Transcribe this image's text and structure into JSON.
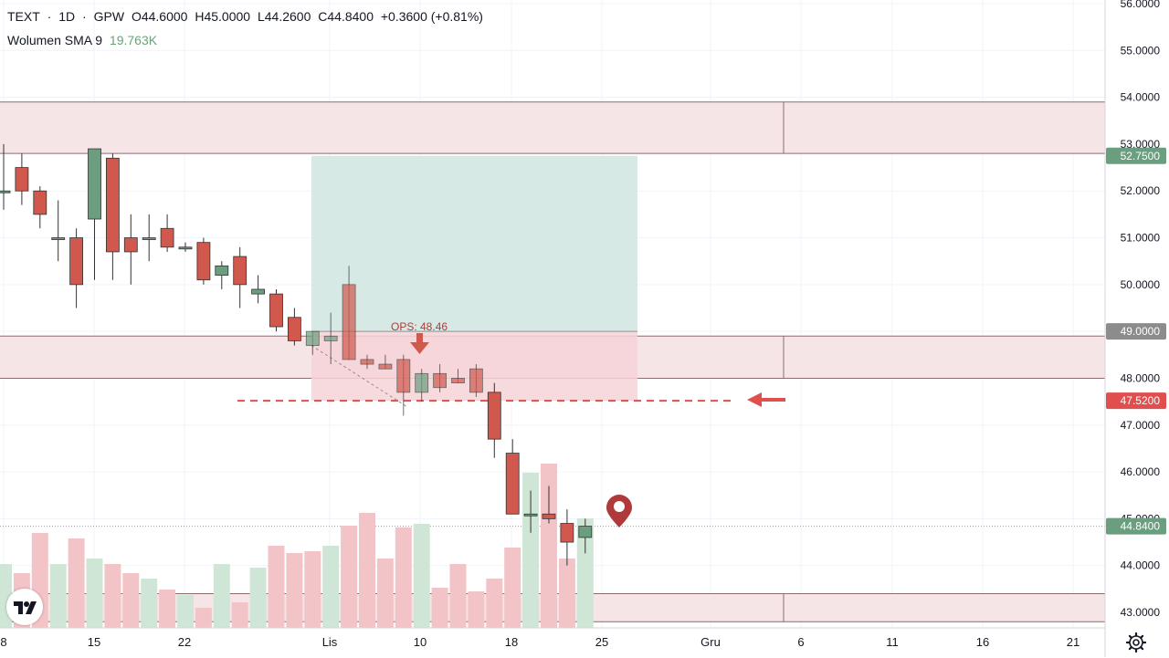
{
  "legend": {
    "symbol": "TEXT",
    "sep1": "·",
    "interval": "1D",
    "sep2": "·",
    "exchange": "GPW",
    "o_label": "O",
    "o_value": "44.6000",
    "h_label": "H",
    "h_value": "45.0000",
    "l_label": "L",
    "l_value": "44.2600",
    "c_label": "C",
    "c_value": "44.8400",
    "change": "+0.3600 (+0.81%)",
    "volume_name": "Wolumen SMA 9",
    "volume_value": "19.763K"
  },
  "colors": {
    "up": "#6a9e7f",
    "down": "#d0584c",
    "zone_fill": "#f6e5e6",
    "zone_line": "#8c6b6f",
    "target_fill": "#d6e9e4",
    "stop_fill": "#f6d3d7",
    "price_red": "#e04e4e",
    "price_green": "#6a9e7f",
    "price_gray": "#8c8c8c"
  },
  "annotation": {
    "label": "OPS: 48.46"
  },
  "icons": {
    "logo": "tradingview-logo-icon",
    "settings": "gear-icon",
    "pin": "location-pin-icon",
    "arrow_down": "arrow-down-icon",
    "arrow_left": "arrow-left-icon"
  },
  "chart_data": {
    "type": "candlestick",
    "title": "TEXT · 1D · GPW",
    "ylim": [
      42.7,
      56.3
    ],
    "y_ticks": [
      "43.0000",
      "44.0000",
      "45.0000",
      "46.0000",
      "47.0000",
      "48.0000",
      "49.0000",
      "50.0000",
      "51.0000",
      "52.0000",
      "53.0000",
      "54.0000",
      "55.0000",
      "56.0000"
    ],
    "x_ticks": [
      "8",
      "15",
      "22",
      "Lis",
      "10",
      "18",
      "25",
      "Gru",
      "6",
      "11",
      "16",
      "21"
    ],
    "price_labels": [
      {
        "value": "52.7500",
        "color": "green"
      },
      {
        "value": "49.0000",
        "color": "gray"
      },
      {
        "value": "47.5200",
        "color": "red"
      },
      {
        "value": "44.8400",
        "color": "green"
      }
    ],
    "zones": [
      {
        "from": 52.8,
        "to": 53.9
      },
      {
        "from": 48.0,
        "to": 48.9
      },
      {
        "from": 42.8,
        "to": 43.4
      }
    ],
    "position": {
      "entry": 47.52,
      "target": 52.75,
      "stop": 49.0
    },
    "candles": [
      {
        "o": 52.0,
        "h": 53.0,
        "l": 51.6,
        "c": 52.0
      },
      {
        "o": 52.5,
        "h": 52.8,
        "l": 51.7,
        "c": 52.0
      },
      {
        "o": 52.0,
        "h": 52.1,
        "l": 51.2,
        "c": 51.5
      },
      {
        "o": 51.0,
        "h": 51.8,
        "l": 50.5,
        "c": 51.0
      },
      {
        "o": 51.0,
        "h": 51.2,
        "l": 49.5,
        "c": 50.0
      },
      {
        "o": 51.4,
        "h": 52.9,
        "l": 50.1,
        "c": 52.9
      },
      {
        "o": 52.7,
        "h": 52.8,
        "l": 50.1,
        "c": 50.7
      },
      {
        "o": 51.0,
        "h": 51.5,
        "l": 50.0,
        "c": 50.7
      },
      {
        "o": 51.0,
        "h": 51.5,
        "l": 50.5,
        "c": 51.0
      },
      {
        "o": 51.2,
        "h": 51.5,
        "l": 50.7,
        "c": 50.8
      },
      {
        "o": 50.8,
        "h": 50.9,
        "l": 50.7,
        "c": 50.8
      },
      {
        "o": 50.9,
        "h": 51.0,
        "l": 50.0,
        "c": 50.1
      },
      {
        "o": 50.2,
        "h": 50.5,
        "l": 49.9,
        "c": 50.4
      },
      {
        "o": 50.6,
        "h": 50.8,
        "l": 49.5,
        "c": 50.0
      },
      {
        "o": 49.8,
        "h": 50.2,
        "l": 49.6,
        "c": 49.9
      },
      {
        "o": 49.8,
        "h": 49.9,
        "l": 49.0,
        "c": 49.1
      },
      {
        "o": 49.3,
        "h": 49.5,
        "l": 48.7,
        "c": 48.8
      },
      {
        "o": 48.7,
        "h": 49.0,
        "l": 48.5,
        "c": 49.0
      },
      {
        "o": 48.8,
        "h": 49.4,
        "l": 48.3,
        "c": 48.9
      },
      {
        "o": 50.0,
        "h": 50.4,
        "l": 48.4,
        "c": 48.4
      },
      {
        "o": 48.4,
        "h": 48.5,
        "l": 48.2,
        "c": 48.3
      },
      {
        "o": 48.3,
        "h": 48.5,
        "l": 48.2,
        "c": 48.2
      },
      {
        "o": 48.4,
        "h": 48.5,
        "l": 47.2,
        "c": 47.7
      },
      {
        "o": 47.7,
        "h": 48.2,
        "l": 47.5,
        "c": 48.1
      },
      {
        "o": 48.1,
        "h": 48.3,
        "l": 47.7,
        "c": 47.8
      },
      {
        "o": 48.0,
        "h": 48.2,
        "l": 47.9,
        "c": 47.9
      },
      {
        "o": 48.2,
        "h": 48.3,
        "l": 47.6,
        "c": 47.7
      },
      {
        "o": 47.7,
        "h": 47.9,
        "l": 46.3,
        "c": 46.7
      },
      {
        "o": 46.4,
        "h": 46.7,
        "l": 45.1,
        "c": 45.1
      },
      {
        "o": 45.1,
        "h": 45.6,
        "l": 44.7,
        "c": 45.1
      },
      {
        "o": 45.1,
        "h": 45.7,
        "l": 44.9,
        "c": 45.0
      },
      {
        "o": 44.9,
        "h": 45.2,
        "l": 44.0,
        "c": 44.5
      },
      {
        "o": 44.6,
        "h": 45.0,
        "l": 44.26,
        "c": 44.84
      }
    ],
    "volume_up": [
      true,
      false,
      false,
      true,
      false,
      true,
      false,
      false,
      true,
      false,
      true,
      false,
      true,
      false,
      true,
      false,
      false,
      false,
      true,
      false,
      false,
      false,
      false,
      true,
      false,
      false,
      false,
      false,
      false,
      true,
      false,
      false,
      true
    ],
    "volume_rel": [
      0.35,
      0.3,
      0.52,
      0.35,
      0.49,
      0.38,
      0.35,
      0.3,
      0.27,
      0.21,
      0.18,
      0.11,
      0.35,
      0.14,
      0.33,
      0.45,
      0.41,
      0.42,
      0.45,
      0.56,
      0.63,
      0.38,
      0.55,
      0.57,
      0.22,
      0.35,
      0.2,
      0.27,
      0.44,
      0.85,
      0.9,
      0.38,
      0.6
    ]
  }
}
